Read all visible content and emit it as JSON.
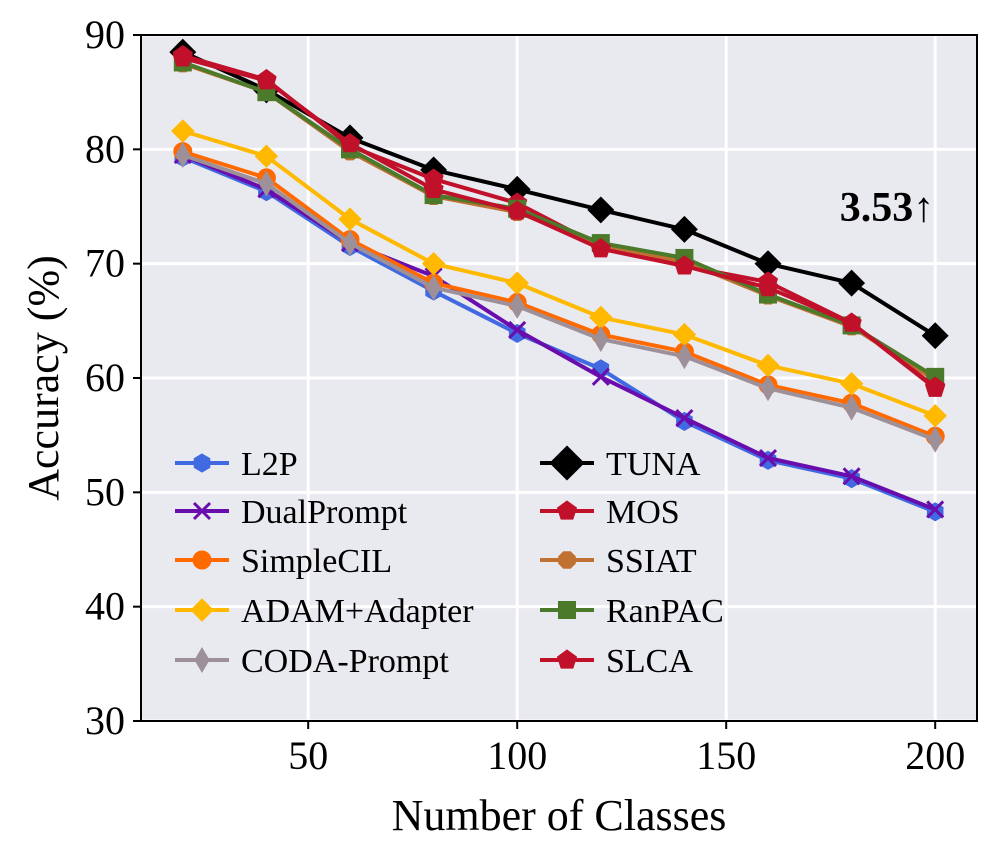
{
  "chart_data": {
    "type": "line",
    "xlabel": "Number of Classes",
    "ylabel": "Accuracy (%)",
    "xlim": [
      10,
      210
    ],
    "ylim": [
      30,
      90
    ],
    "xticks": [
      50,
      100,
      150,
      200
    ],
    "yticks": [
      30,
      40,
      50,
      60,
      70,
      80,
      90
    ],
    "grid": true,
    "legend_position": "lower-left",
    "x": [
      20,
      40,
      60,
      80,
      100,
      120,
      140,
      160,
      180,
      200
    ],
    "annotation": "3.53↑",
    "series": [
      {
        "name": "L2P",
        "color": "#4169e1",
        "marker": "hexagon",
        "values": [
          79.3,
          76.3,
          71.5,
          67.6,
          63.9,
          60.8,
          56.2,
          52.8,
          51.2,
          48.3
        ]
      },
      {
        "name": "DualPrompt",
        "color": "#6a0dad",
        "marker": "x",
        "values": [
          79.5,
          76.5,
          71.8,
          68.9,
          64.2,
          60.1,
          56.5,
          53.0,
          51.4,
          48.5
        ]
      },
      {
        "name": "SimpleCIL",
        "color": "#ff6a00",
        "marker": "circle",
        "values": [
          79.8,
          77.5,
          72.1,
          68.3,
          66.6,
          63.8,
          62.3,
          59.4,
          57.8,
          54.9
        ]
      },
      {
        "name": "ADAM+Adapter",
        "color": "#ffb900",
        "marker": "diamond",
        "values": [
          81.6,
          79.4,
          73.9,
          70.0,
          68.3,
          65.3,
          63.8,
          61.1,
          59.5,
          56.7
        ]
      },
      {
        "name": "CODA-Prompt",
        "color": "#9e9098",
        "marker": "thin-diamond",
        "values": [
          79.5,
          77.0,
          71.8,
          67.9,
          66.3,
          63.4,
          61.9,
          59.1,
          57.4,
          54.6
        ]
      },
      {
        "name": "TUNA",
        "color": "#000000",
        "marker": "diamond",
        "values": [
          88.5,
          85.2,
          81.0,
          78.2,
          76.5,
          74.7,
          73.0,
          70.0,
          68.3,
          63.7
        ]
      },
      {
        "name": "MOS",
        "color": "#c0102a",
        "marker": "pentagon",
        "values": [
          88.2,
          86.1,
          80.3,
          77.4,
          75.3,
          71.5,
          69.8,
          68.4,
          64.8,
          59.1
        ]
      },
      {
        "name": "SSIAT",
        "color": "#c07030",
        "marker": "octagon",
        "values": [
          87.5,
          85.0,
          79.8,
          75.9,
          74.5,
          71.6,
          70.2,
          67.2,
          64.5,
          59.8
        ]
      },
      {
        "name": "RanPAC",
        "color": "#4a7a2a",
        "marker": "square",
        "values": [
          87.6,
          85.0,
          80.0,
          76.0,
          74.8,
          71.8,
          70.5,
          67.3,
          64.6,
          60.1
        ]
      },
      {
        "name": "SLCA",
        "color": "#c0102a",
        "marker": "pentagon",
        "values": [
          88.0,
          86.0,
          80.5,
          76.5,
          74.6,
          71.3,
          69.8,
          67.9,
          64.8,
          59.2
        ]
      }
    ]
  }
}
